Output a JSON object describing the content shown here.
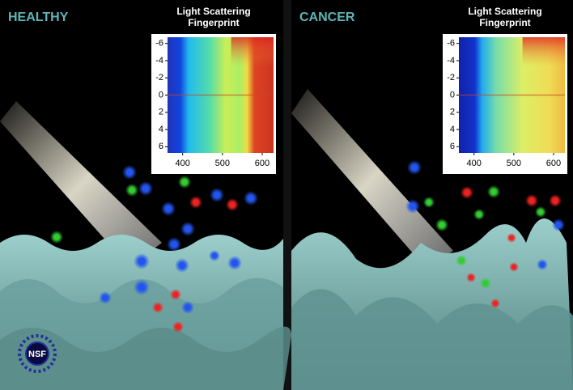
{
  "panels": [
    {
      "label": "HEALTHY",
      "inset": {
        "title_lines": [
          "Light Scattering",
          "Fingerprint"
        ],
        "yticks": [
          -6,
          -4,
          -2,
          0,
          2,
          4,
          6
        ],
        "xticks": [
          400,
          500,
          600
        ]
      }
    },
    {
      "label": "CANCER",
      "inset": {
        "title_lines": [
          "Light Scattering",
          "Fingerprint"
        ],
        "yticks": [
          -6,
          -4,
          -2,
          0,
          2,
          4,
          6
        ],
        "xticks": [
          400,
          500,
          600
        ]
      }
    }
  ],
  "logo": "NSF"
}
